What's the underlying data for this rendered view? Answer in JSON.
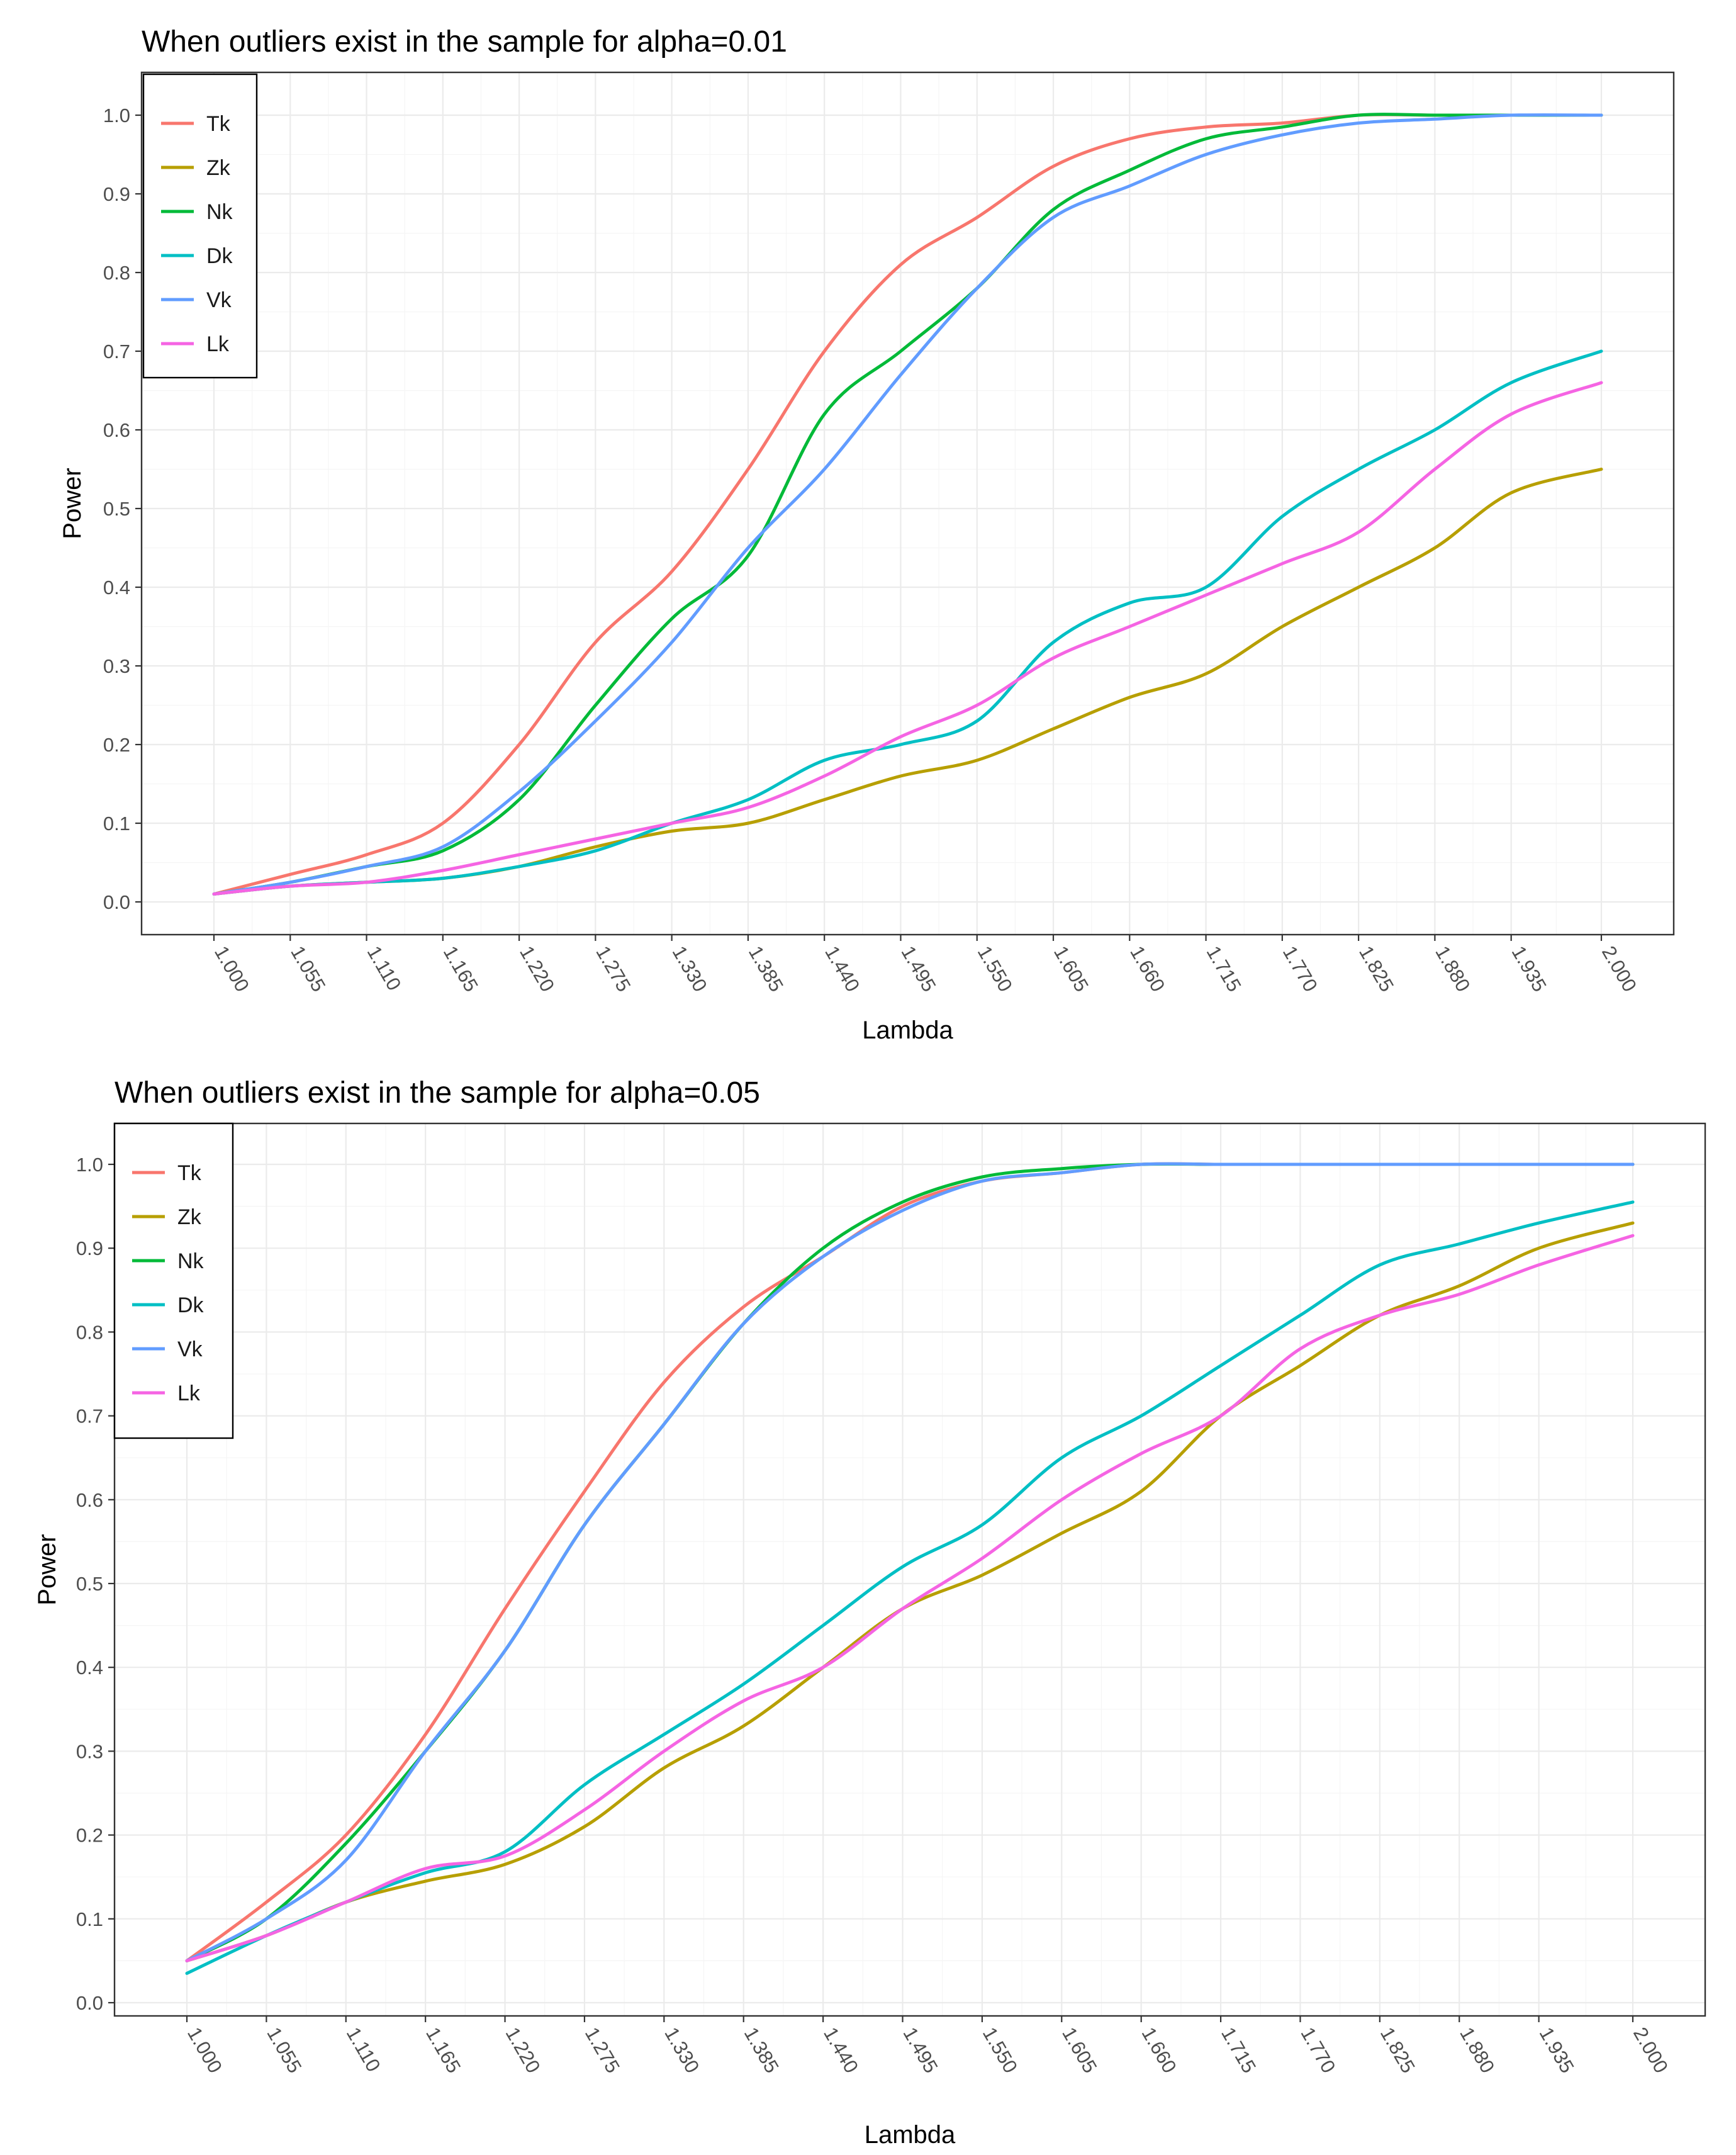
{
  "chart_data": [
    {
      "type": "line",
      "title": "When outliers exist in the sample for alpha=0.01",
      "xlabel": "Lambda",
      "ylabel": "Power",
      "xlim": [
        1.0,
        2.0
      ],
      "ylim": [
        0.0,
        1.0
      ],
      "x_ticks": [
        "1.000",
        "1.055",
        "1.110",
        "1.165",
        "1.220",
        "1.275",
        "1.330",
        "1.385",
        "1.440",
        "1.495",
        "1.550",
        "1.605",
        "1.660",
        "1.715",
        "1.770",
        "1.825",
        "1.880",
        "1.935",
        "2.000"
      ],
      "y_ticks": [
        "0.0",
        "0.1",
        "0.2",
        "0.3",
        "0.4",
        "0.5",
        "0.6",
        "0.7",
        "0.8",
        "0.9",
        "1.0"
      ],
      "legend_position": "top-left",
      "x": [
        1.0,
        1.055,
        1.11,
        1.165,
        1.22,
        1.275,
        1.33,
        1.385,
        1.44,
        1.495,
        1.55,
        1.605,
        1.66,
        1.715,
        1.77,
        1.825,
        1.88,
        1.935,
        2.0
      ],
      "series": [
        {
          "name": "Tk",
          "color": "#F8766D",
          "values": [
            0.01,
            0.035,
            0.06,
            0.1,
            0.2,
            0.33,
            0.42,
            0.55,
            0.7,
            0.81,
            0.87,
            0.935,
            0.97,
            0.985,
            0.99,
            1.0,
            1.0,
            1.0,
            1.0
          ]
        },
        {
          "name": "Zk",
          "color": "#B79F00",
          "values": [
            0.01,
            0.02,
            0.025,
            0.03,
            0.045,
            0.07,
            0.09,
            0.1,
            0.13,
            0.16,
            0.18,
            0.22,
            0.26,
            0.29,
            0.35,
            0.4,
            0.45,
            0.52,
            0.55
          ]
        },
        {
          "name": "Nk",
          "color": "#00BA38",
          "values": [
            0.01,
            0.025,
            0.045,
            0.065,
            0.13,
            0.25,
            0.36,
            0.44,
            0.62,
            0.7,
            0.78,
            0.88,
            0.93,
            0.97,
            0.985,
            1.0,
            1.0,
            1.0,
            1.0
          ]
        },
        {
          "name": "Dk",
          "color": "#00BFC4",
          "values": [
            0.01,
            0.02,
            0.025,
            0.03,
            0.045,
            0.065,
            0.1,
            0.13,
            0.18,
            0.2,
            0.23,
            0.33,
            0.38,
            0.4,
            0.49,
            0.55,
            0.6,
            0.66,
            0.7
          ]
        },
        {
          "name": "Vk",
          "color": "#619CFF",
          "values": [
            0.01,
            0.025,
            0.045,
            0.07,
            0.14,
            0.23,
            0.33,
            0.45,
            0.55,
            0.67,
            0.78,
            0.87,
            0.91,
            0.95,
            0.975,
            0.99,
            0.995,
            1.0,
            1.0
          ]
        },
        {
          "name": "Lk",
          "color": "#F564E3",
          "values": [
            0.01,
            0.02,
            0.025,
            0.04,
            0.06,
            0.08,
            0.1,
            0.12,
            0.16,
            0.21,
            0.25,
            0.31,
            0.35,
            0.39,
            0.43,
            0.47,
            0.55,
            0.62,
            0.66
          ]
        }
      ]
    },
    {
      "type": "line",
      "title": "When outliers exist in the sample for alpha=0.05",
      "xlabel": "Lambda",
      "ylabel": "Power",
      "xlim": [
        1.0,
        2.0
      ],
      "ylim": [
        0.0,
        1.0
      ],
      "x_ticks": [
        "1.000",
        "1.055",
        "1.110",
        "1.165",
        "1.220",
        "1.275",
        "1.330",
        "1.385",
        "1.440",
        "1.495",
        "1.550",
        "1.605",
        "1.660",
        "1.715",
        "1.770",
        "1.825",
        "1.880",
        "1.935",
        "2.000"
      ],
      "y_ticks": [
        "0.0",
        "0.1",
        "0.2",
        "0.3",
        "0.4",
        "0.5",
        "0.6",
        "0.7",
        "0.8",
        "0.9",
        "1.0"
      ],
      "legend_position": "top-left",
      "x": [
        1.0,
        1.055,
        1.11,
        1.165,
        1.22,
        1.275,
        1.33,
        1.385,
        1.44,
        1.495,
        1.55,
        1.605,
        1.66,
        1.715,
        1.77,
        1.825,
        1.88,
        1.935,
        2.0
      ],
      "series": [
        {
          "name": "Tk",
          "color": "#F8766D",
          "values": [
            0.05,
            0.12,
            0.2,
            0.32,
            0.47,
            0.61,
            0.74,
            0.83,
            0.89,
            0.95,
            0.98,
            0.99,
            1.0,
            1.0,
            1.0,
            1.0,
            1.0,
            1.0,
            1.0
          ]
        },
        {
          "name": "Zk",
          "color": "#B79F00",
          "values": [
            0.05,
            0.08,
            0.12,
            0.145,
            0.165,
            0.21,
            0.28,
            0.33,
            0.4,
            0.47,
            0.51,
            0.56,
            0.61,
            0.7,
            0.76,
            0.82,
            0.855,
            0.9,
            0.93
          ]
        },
        {
          "name": "Nk",
          "color": "#00BA38",
          "values": [
            0.05,
            0.1,
            0.19,
            0.3,
            0.42,
            0.57,
            0.69,
            0.81,
            0.9,
            0.955,
            0.985,
            0.995,
            1.0,
            1.0,
            1.0,
            1.0,
            1.0,
            1.0,
            1.0
          ]
        },
        {
          "name": "Dk",
          "color": "#00BFC4",
          "values": [
            0.035,
            0.08,
            0.12,
            0.155,
            0.18,
            0.26,
            0.32,
            0.38,
            0.45,
            0.52,
            0.57,
            0.65,
            0.7,
            0.76,
            0.82,
            0.88,
            0.905,
            0.93,
            0.955
          ]
        },
        {
          "name": "Vk",
          "color": "#619CFF",
          "values": [
            0.05,
            0.1,
            0.17,
            0.3,
            0.42,
            0.57,
            0.69,
            0.81,
            0.89,
            0.945,
            0.98,
            0.99,
            1.0,
            1.0,
            1.0,
            1.0,
            1.0,
            1.0,
            1.0
          ]
        },
        {
          "name": "Lk",
          "color": "#F564E3",
          "values": [
            0.05,
            0.08,
            0.12,
            0.16,
            0.175,
            0.23,
            0.3,
            0.36,
            0.4,
            0.47,
            0.53,
            0.6,
            0.655,
            0.7,
            0.78,
            0.82,
            0.845,
            0.88,
            0.915
          ]
        }
      ]
    }
  ]
}
